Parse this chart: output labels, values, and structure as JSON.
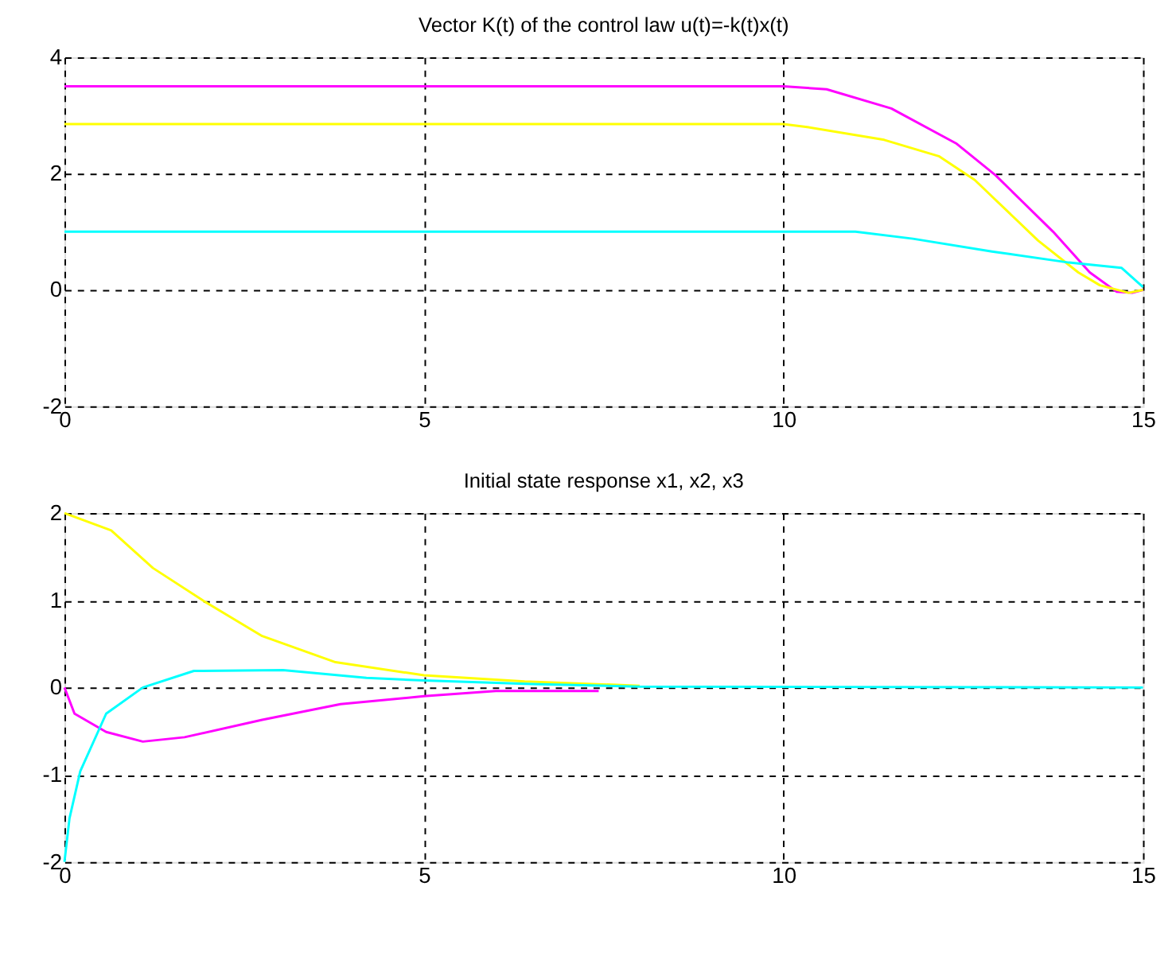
{
  "chart_data": [
    {
      "type": "line",
      "title": "Vector K(t) of the control law u(t)=-k(t)x(t)",
      "xlim": [
        0,
        15
      ],
      "ylim": [
        -2,
        4
      ],
      "xticks": [
        0,
        5,
        10,
        15
      ],
      "yticks": [
        -2,
        0,
        2,
        4
      ],
      "grid": true,
      "marker": "none",
      "line_style": "solid",
      "series": [
        {
          "color": "#ff00ff",
          "x": [
            0,
            5,
            10,
            10.6,
            11.5,
            12.4,
            12.95,
            13.75,
            14.26,
            14.63,
            14.85,
            15
          ],
          "values": [
            3.5,
            3.5,
            3.5,
            3.45,
            3.12,
            2.52,
            1.97,
            1.0,
            0.3,
            -0.03,
            -0.05,
            0
          ]
        },
        {
          "color": "#ffff00",
          "x": [
            0,
            5,
            10,
            10.33,
            11.4,
            12.16,
            12.66,
            13.54,
            14.1,
            14.4,
            14.8,
            15
          ],
          "values": [
            2.85,
            2.85,
            2.85,
            2.8,
            2.58,
            2.3,
            1.89,
            0.85,
            0.3,
            0.08,
            -0.05,
            0
          ]
        },
        {
          "color": "#00ffff",
          "x": [
            0,
            5,
            11,
            11.8,
            12.9,
            13.97,
            14.7,
            15
          ],
          "values": [
            1.0,
            1.0,
            1.0,
            0.88,
            0.66,
            0.47,
            0.38,
            0.05
          ]
        }
      ]
    },
    {
      "type": "line",
      "title": "Initial state response x1, x2, x3",
      "xlim": [
        0,
        15
      ],
      "ylim": [
        -2,
        2
      ],
      "xticks": [
        0,
        5,
        10,
        15
      ],
      "yticks": [
        -2,
        -1,
        0,
        1,
        2
      ],
      "grid": true,
      "marker": "none",
      "line_style": "solid",
      "series": [
        {
          "color": "#ffff00",
          "x": [
            0,
            0.65,
            1.23,
            1.96,
            2.75,
            3.77,
            5,
            6.4,
            8
          ],
          "values": [
            2,
            1.8,
            1.37,
            0.98,
            0.59,
            0.29,
            0.14,
            0.07,
            0.02
          ]
        },
        {
          "color": "#ff00ff",
          "x": [
            0,
            0.14,
            0.58,
            1.09,
            1.67,
            2.75,
            3.84,
            5,
            6,
            7.43
          ],
          "values": [
            0,
            -0.3,
            -0.51,
            -0.62,
            -0.57,
            -0.37,
            -0.19,
            -0.1,
            -0.04,
            -0.04
          ]
        },
        {
          "color": "#00ffff",
          "x": [
            0,
            0.07,
            0.22,
            0.58,
            1.09,
            1.8,
            3.04,
            4.2,
            5,
            6.5,
            8,
            15
          ],
          "values": [
            -2,
            -1.5,
            -0.96,
            -0.3,
            0,
            0.19,
            0.2,
            0.11,
            0.08,
            0.04,
            0.01,
            0
          ]
        }
      ]
    }
  ]
}
